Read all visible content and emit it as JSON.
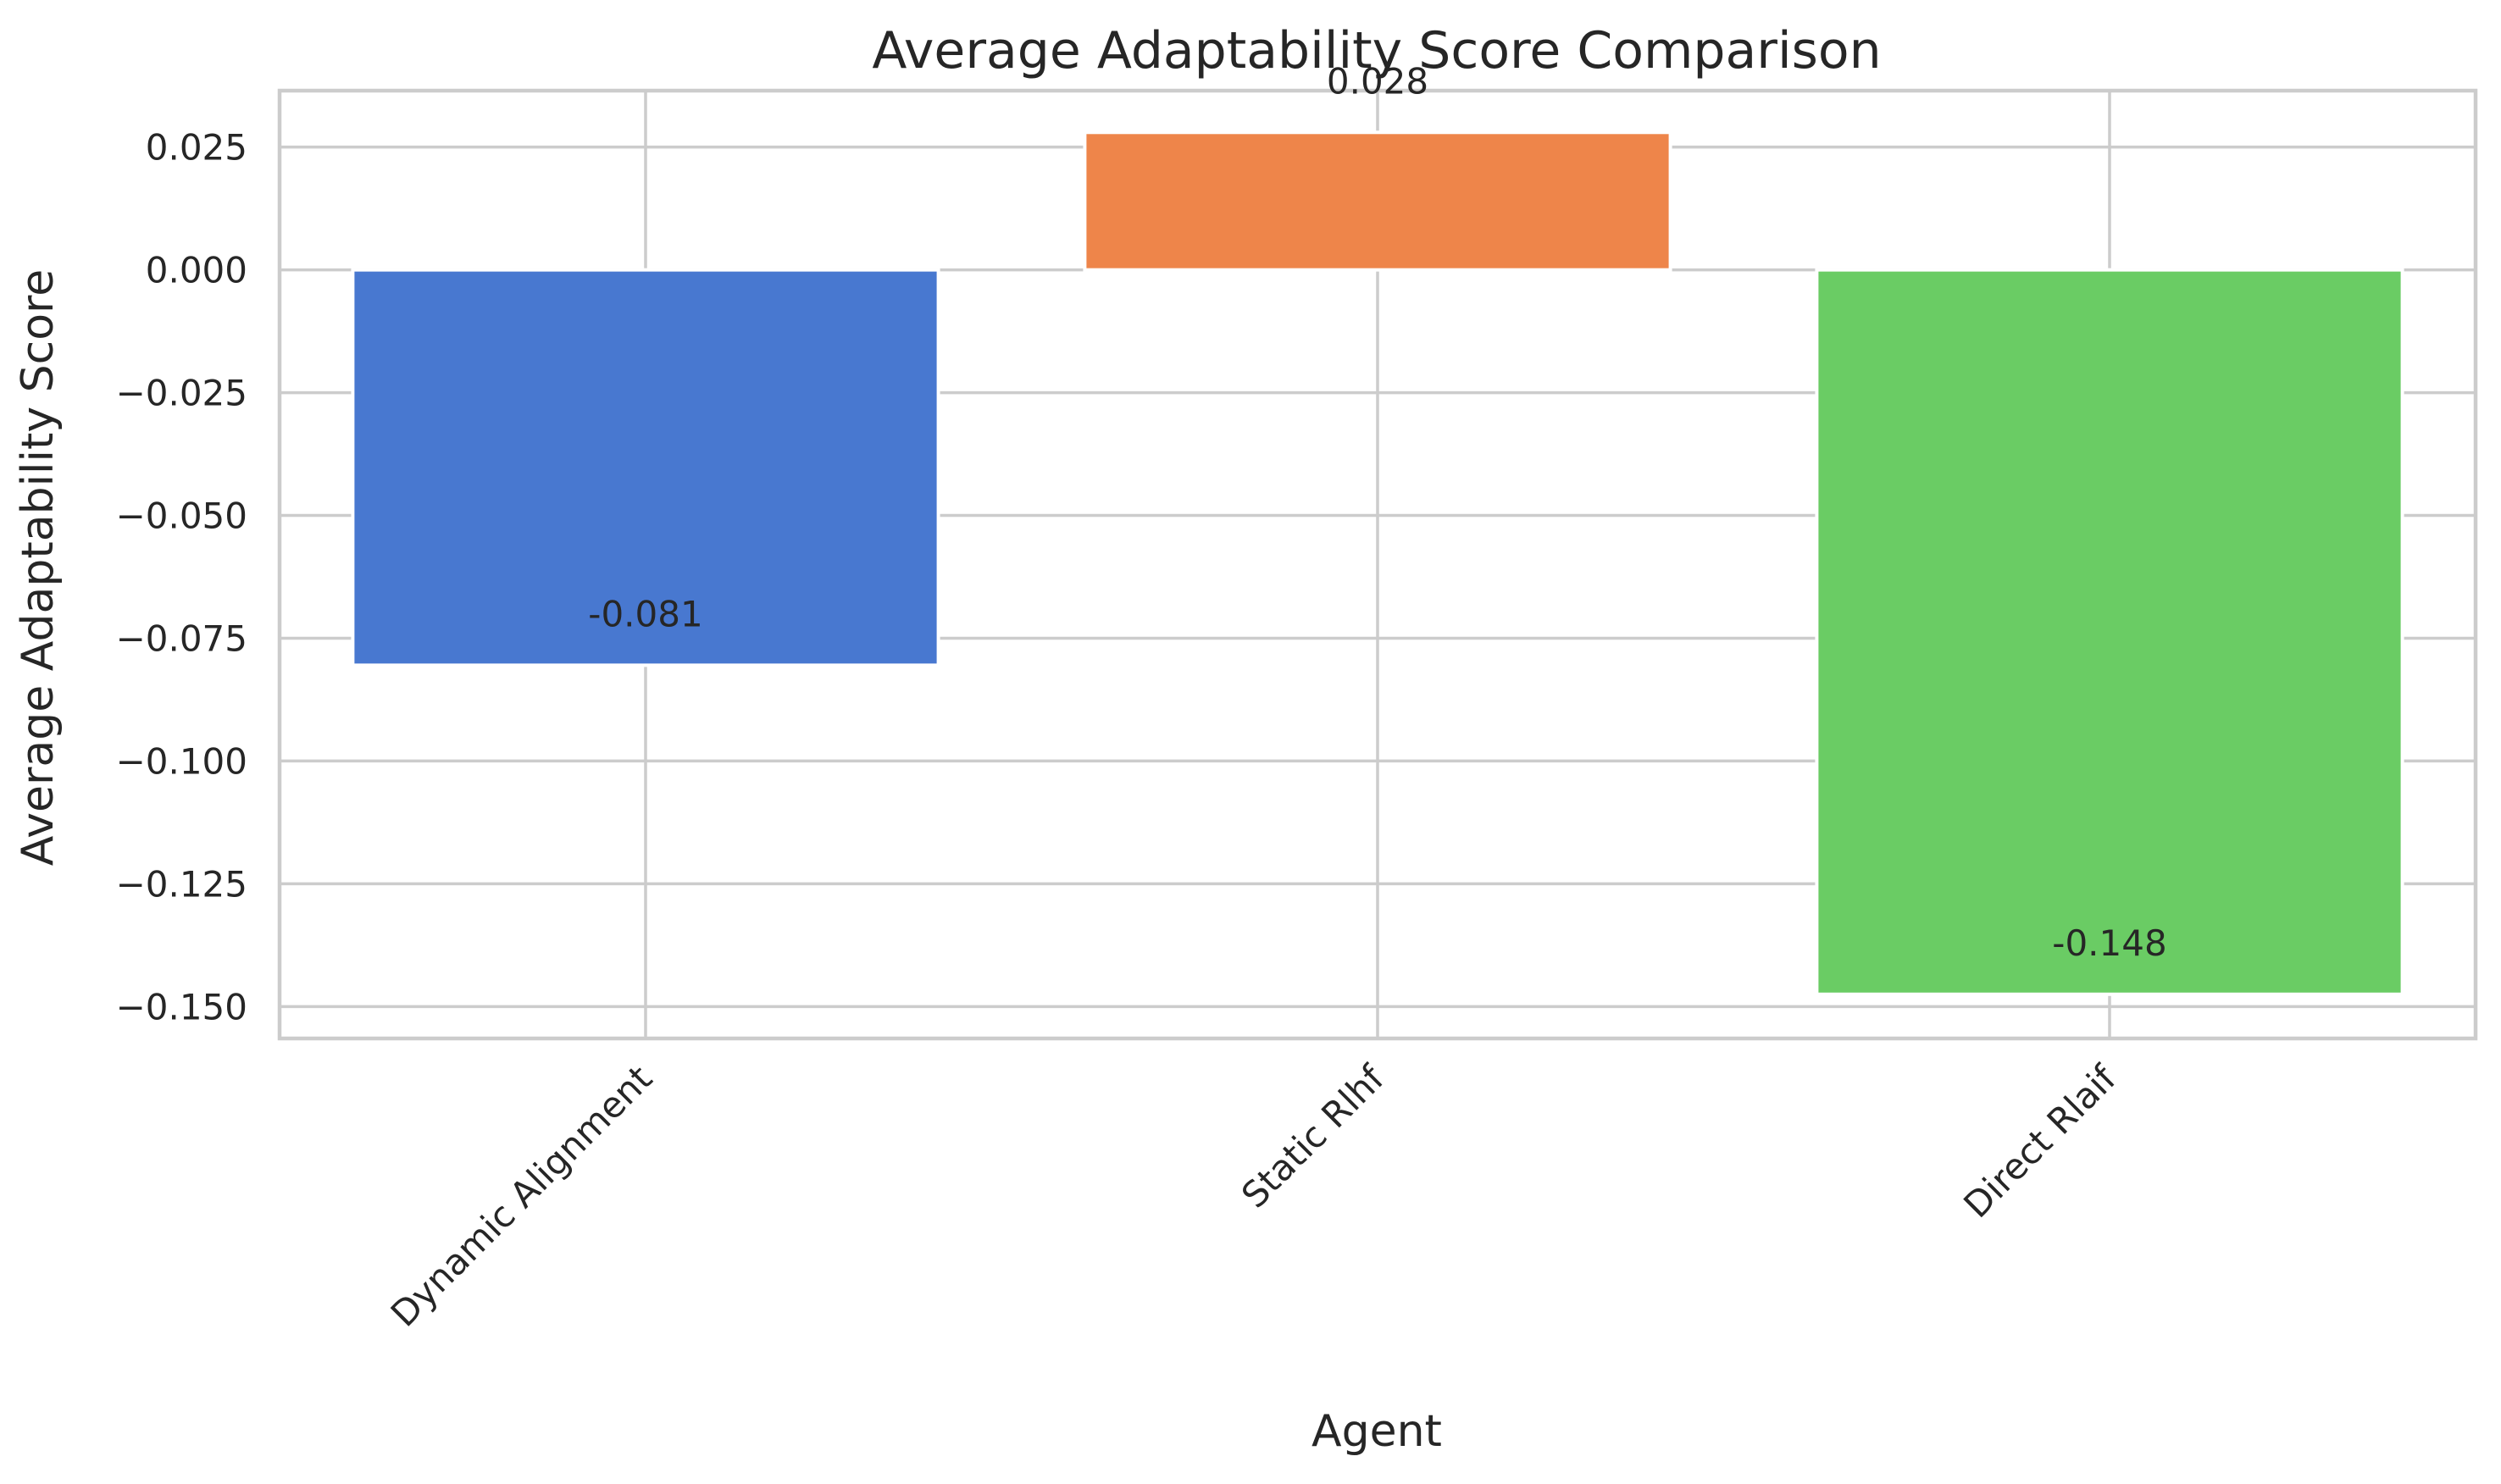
{
  "chart_data": {
    "type": "bar",
    "title": "Average Adaptability Score Comparison",
    "xlabel": "Agent",
    "ylabel": "Average Adaptability Score",
    "categories": [
      "Dynamic Alignment",
      "Static Rlhf",
      "Direct Rlaif"
    ],
    "values": [
      -0.0805,
      0.028,
      -0.1475
    ],
    "data_labels": [
      "-0.081",
      "0.028",
      "-0.148"
    ],
    "colors": [
      "#4878d0",
      "#ee854a",
      "#6acc64"
    ],
    "ylim": [
      -0.1565,
      0.0365
    ],
    "yticks": [
      0.025,
      0.0,
      -0.025,
      -0.05,
      -0.075,
      -0.1,
      -0.125,
      -0.15
    ],
    "ytick_labels": [
      "0.025",
      "0.000",
      "−0.025",
      "−0.050",
      "−0.075",
      "−0.100",
      "−0.125",
      "−0.150"
    ],
    "grid": true,
    "legend": "none"
  }
}
